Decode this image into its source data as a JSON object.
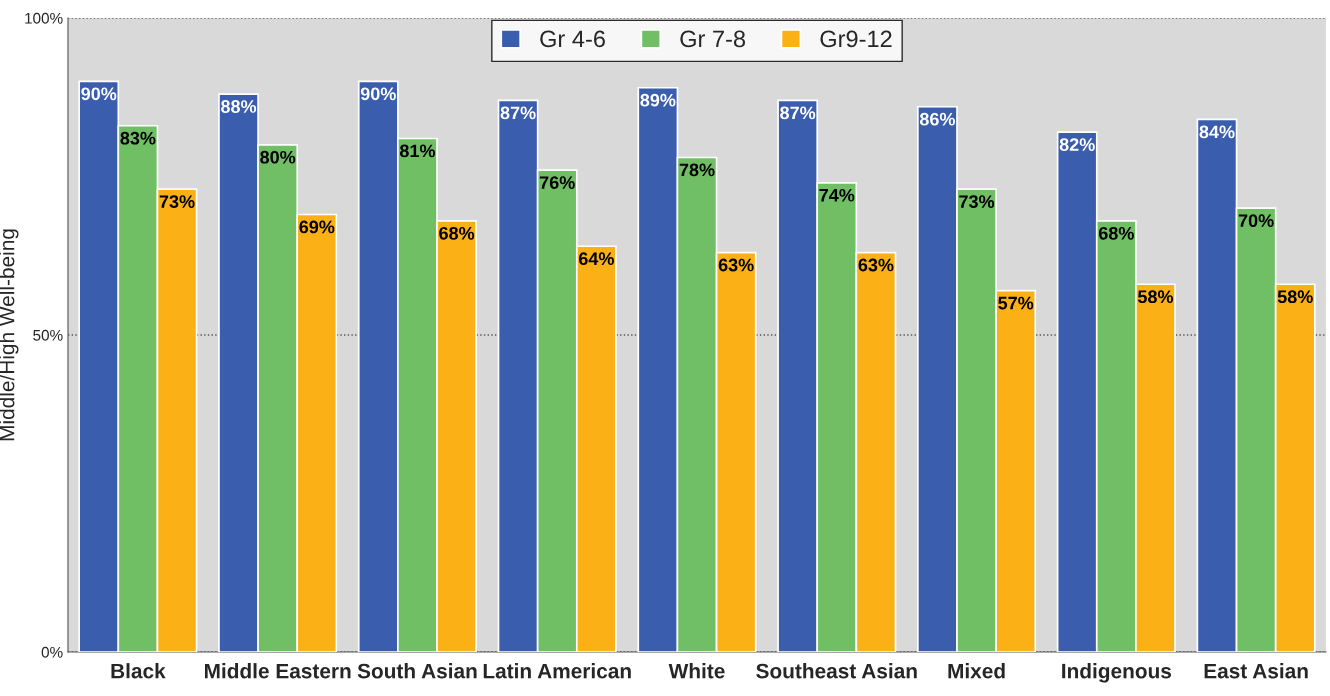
{
  "chart_data": {
    "type": "bar",
    "ylabel": "Middle/High Well-being",
    "categories": [
      "Black",
      "Middle Eastern",
      "South Asian",
      "Latin American",
      "White",
      "Southeast Asian",
      "Mixed",
      "Indigenous",
      "East Asian"
    ],
    "series": [
      {
        "name": "Gr 4-6",
        "color": "#3a5dae",
        "values": [
          90,
          88,
          90,
          87,
          89,
          87,
          86,
          82,
          84
        ],
        "value_labels": [
          "90%",
          "88%",
          "90%",
          "87%",
          "89%",
          "87%",
          "86%",
          "82%",
          "84%"
        ]
      },
      {
        "name": "Gr 7-8",
        "color": "#70bf65",
        "values": [
          83,
          80,
          81,
          76,
          78,
          74,
          73,
          68,
          70
        ],
        "value_labels": [
          "83%",
          "80%",
          "81%",
          "76%",
          "78%",
          "74%",
          "73%",
          "68%",
          "70%"
        ]
      },
      {
        "name": "Gr9-12",
        "color": "#fbb116",
        "values": [
          73,
          69,
          68,
          64,
          63,
          63,
          57,
          58,
          58
        ],
        "value_labels": [
          "73%",
          "69%",
          "68%",
          "64%",
          "63%",
          "63%",
          "57%",
          "58%",
          "58%"
        ]
      }
    ],
    "ylim": [
      0,
      100
    ],
    "yticks": [
      {
        "value": 0,
        "label": "0%"
      },
      {
        "value": 50,
        "label": "50%"
      },
      {
        "value": 100,
        "label": "100%"
      }
    ],
    "grid": "y",
    "legend": "top"
  }
}
